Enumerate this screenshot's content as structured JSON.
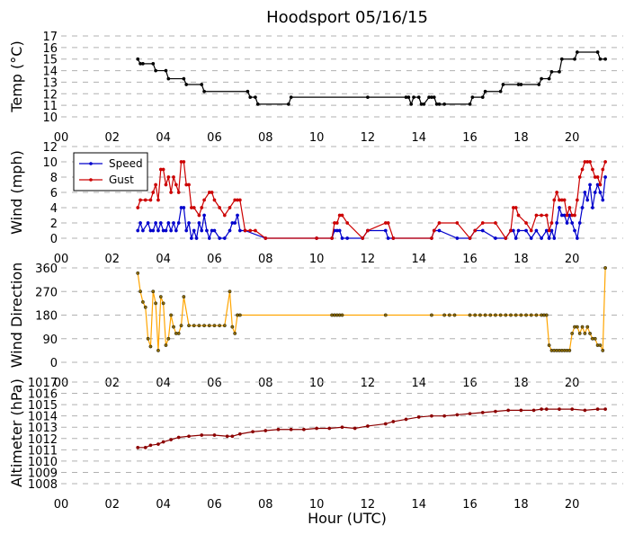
{
  "title": "Hoodsport 05/16/15",
  "xlabel": "Hour (UTC)",
  "xtick_labels": [
    "00",
    "02",
    "04",
    "06",
    "08",
    "10",
    "12",
    "14",
    "16",
    "18",
    "20"
  ],
  "colors": {
    "temp": "#000000",
    "speed": "#0000cc",
    "gust": "#cc0000",
    "direction": "#ffa500",
    "altimeter": "#8b0000"
  },
  "chart_data": [
    {
      "type": "line",
      "ylabel": "Temp (°C)",
      "ylim": [
        10,
        17
      ],
      "yticks": [
        10,
        11,
        12,
        13,
        14,
        15,
        16,
        17
      ],
      "xlim": [
        0,
        22
      ],
      "grid": true,
      "series": [
        {
          "key": "temp",
          "x": [
            3.0,
            3.1,
            3.2,
            3.6,
            3.7,
            4.1,
            4.2,
            4.8,
            4.9,
            5.5,
            5.6,
            7.3,
            7.4,
            7.6,
            7.7,
            8.9,
            9.0,
            12.0,
            13.5,
            13.6,
            13.7,
            13.8,
            14.0,
            14.1,
            14.2,
            14.4,
            14.5,
            14.6,
            14.7,
            14.8,
            15.0,
            16.0,
            16.1,
            16.5,
            16.6,
            17.2,
            17.3,
            17.9,
            18.0,
            18.7,
            18.8,
            19.1,
            19.2,
            19.5,
            19.6,
            20.1,
            20.2,
            21.0,
            21.1,
            21.3
          ],
          "y": [
            15,
            14.6,
            14.6,
            14.6,
            14,
            14,
            13.3,
            13.3,
            12.8,
            12.8,
            12.2,
            12.2,
            11.7,
            11.7,
            11.1,
            11.1,
            11.7,
            11.7,
            11.7,
            11.7,
            11.1,
            11.7,
            11.7,
            11.1,
            11.1,
            11.7,
            11.7,
            11.7,
            11.1,
            11.1,
            11.1,
            11.1,
            11.7,
            11.7,
            12.2,
            12.2,
            12.8,
            12.8,
            12.8,
            12.8,
            13.3,
            13.3,
            13.9,
            13.9,
            15,
            15,
            15.6,
            15.6,
            15,
            15
          ]
        }
      ]
    },
    {
      "type": "line",
      "ylabel": "Wind (mph)",
      "ylim": [
        0,
        12
      ],
      "yticks": [
        0,
        2,
        4,
        6,
        8,
        10,
        12
      ],
      "xlim": [
        0,
        22
      ],
      "grid": true,
      "legend": "upper-left",
      "series": [
        {
          "key": "speed",
          "name": "Speed",
          "x": [
            3.0,
            3.1,
            3.2,
            3.4,
            3.5,
            3.6,
            3.7,
            3.8,
            3.9,
            4.0,
            4.1,
            4.2,
            4.3,
            4.4,
            4.5,
            4.6,
            4.7,
            4.8,
            4.9,
            5.0,
            5.1,
            5.2,
            5.3,
            5.4,
            5.5,
            5.6,
            5.7,
            5.8,
            5.9,
            6.0,
            6.2,
            6.4,
            6.6,
            6.7,
            6.8,
            6.9,
            7.0,
            7.2,
            8.0,
            10.0,
            10.6,
            10.7,
            10.8,
            10.9,
            11.0,
            11.2,
            11.8,
            12.0,
            12.7,
            12.8,
            13.0,
            14.5,
            14.6,
            14.8,
            15.5,
            16.0,
            16.2,
            16.5,
            17.0,
            17.4,
            17.6,
            17.7,
            17.8,
            17.9,
            18.2,
            18.4,
            18.6,
            18.8,
            19.0,
            19.1,
            19.2,
            19.3,
            19.4,
            19.5,
            19.6,
            19.7,
            19.8,
            19.9,
            20.0,
            20.1,
            20.2,
            20.3,
            20.4,
            20.5,
            20.6,
            20.7,
            20.8,
            20.9,
            21.0,
            21.1,
            21.2,
            21.3
          ],
          "y": [
            1,
            2,
            1,
            2,
            1,
            1,
            2,
            1,
            2,
            1,
            1,
            2,
            1,
            2,
            1,
            2,
            4,
            4,
            1,
            2,
            0,
            1,
            0,
            2,
            1,
            3,
            1,
            0,
            1,
            1,
            0,
            0,
            1,
            2,
            2,
            3,
            1,
            1,
            0,
            0,
            0,
            1,
            1,
            1,
            0,
            0,
            0,
            1,
            1,
            0,
            0,
            0,
            1,
            1,
            0,
            0,
            1,
            1,
            0,
            0,
            1,
            1,
            0,
            1,
            1,
            0,
            1,
            0,
            1,
            0,
            1,
            0,
            2,
            4,
            3,
            3,
            2,
            3,
            2,
            1,
            0,
            2,
            4,
            6,
            5,
            7,
            4,
            6,
            7,
            6,
            5,
            8
          ]
        },
        {
          "key": "gust",
          "name": "Gust",
          "x": [
            3.0,
            3.1,
            3.3,
            3.5,
            3.6,
            3.7,
            3.8,
            3.9,
            4.0,
            4.1,
            4.2,
            4.3,
            4.4,
            4.5,
            4.6,
            4.7,
            4.8,
            4.9,
            5.0,
            5.1,
            5.2,
            5.4,
            5.5,
            5.6,
            5.8,
            5.9,
            6.0,
            6.2,
            6.4,
            6.6,
            6.8,
            6.9,
            7.0,
            7.2,
            7.4,
            7.6,
            8.0,
            10.0,
            10.6,
            10.7,
            10.8,
            10.9,
            11.0,
            11.2,
            11.8,
            12.0,
            12.7,
            12.8,
            13.0,
            14.5,
            14.6,
            14.8,
            15.5,
            16.0,
            16.2,
            16.5,
            17.0,
            17.4,
            17.6,
            17.7,
            17.8,
            17.9,
            18.2,
            18.4,
            18.6,
            18.8,
            19.0,
            19.1,
            19.2,
            19.3,
            19.4,
            19.5,
            19.6,
            19.7,
            19.8,
            19.9,
            20.0,
            20.1,
            20.2,
            20.3,
            20.4,
            20.5,
            20.6,
            20.7,
            20.8,
            20.9,
            21.0,
            21.1,
            21.2,
            21.3
          ],
          "y": [
            4,
            5,
            5,
            5,
            6,
            7,
            5,
            9,
            9,
            7,
            8,
            6,
            8,
            7,
            6,
            10,
            10,
            7,
            7,
            4,
            4,
            3,
            4,
            5,
            6,
            6,
            5,
            4,
            3,
            4,
            5,
            5,
            5,
            1,
            1,
            1,
            0,
            0,
            0,
            2,
            2,
            3,
            3,
            2,
            0,
            1,
            2,
            2,
            0,
            0,
            1,
            2,
            2,
            0,
            1,
            2,
            2,
            0,
            1,
            4,
            4,
            3,
            2,
            1,
            3,
            3,
            3,
            1,
            2,
            5,
            6,
            5,
            5,
            5,
            3,
            4,
            3,
            3,
            5,
            8,
            9,
            10,
            10,
            10,
            9,
            8,
            8,
            7,
            9,
            10
          ]
        }
      ]
    },
    {
      "type": "scatter",
      "ylabel": "Wind Direction",
      "ylim": [
        0,
        360
      ],
      "yticks": [
        0,
        90,
        180,
        270,
        360
      ],
      "xlim": [
        0,
        22
      ],
      "grid": true,
      "series": [
        {
          "key": "direction",
          "x": [
            3.0,
            3.1,
            3.2,
            3.3,
            3.4,
            3.5,
            3.6,
            3.7,
            3.8,
            3.9,
            4.0,
            4.1,
            4.2,
            4.3,
            4.4,
            4.5,
            4.6,
            4.7,
            4.8,
            5.0,
            5.2,
            5.4,
            5.6,
            5.8,
            6.0,
            6.2,
            6.4,
            6.6,
            6.7,
            6.8,
            6.9,
            7.0,
            10.6,
            10.7,
            10.8,
            10.9,
            11.0,
            12.7,
            14.5,
            15.0,
            15.2,
            15.4,
            16.0,
            16.2,
            16.4,
            16.6,
            16.8,
            17.0,
            17.2,
            17.4,
            17.6,
            17.8,
            18.0,
            18.2,
            18.4,
            18.6,
            18.8,
            18.9,
            19.0,
            19.1,
            19.2,
            19.3,
            19.4,
            19.5,
            19.6,
            19.7,
            19.8,
            19.9,
            20.0,
            20.1,
            20.2,
            20.3,
            20.4,
            20.5,
            20.6,
            20.7,
            20.8,
            20.9,
            21.0,
            21.1,
            21.2,
            21.3
          ],
          "y": [
            340,
            270,
            230,
            210,
            90,
            60,
            270,
            225,
            45,
            250,
            225,
            65,
            90,
            180,
            135,
            110,
            110,
            140,
            250,
            140,
            140,
            140,
            140,
            140,
            140,
            140,
            140,
            270,
            135,
            110,
            180,
            180,
            180,
            180,
            180,
            180,
            180,
            180,
            180,
            180,
            180,
            180,
            180,
            180,
            180,
            180,
            180,
            180,
            180,
            180,
            180,
            180,
            180,
            180,
            180,
            180,
            180,
            180,
            180,
            65,
            45,
            45,
            45,
            45,
            45,
            45,
            45,
            45,
            110,
            135,
            135,
            110,
            135,
            110,
            135,
            110,
            90,
            90,
            65,
            65,
            45,
            360
          ]
        }
      ]
    },
    {
      "type": "line",
      "ylabel": "Altimeter (hPa)",
      "ylim": [
        1008,
        1017
      ],
      "yticks": [
        1008,
        1009,
        1010,
        1011,
        1012,
        1013,
        1014,
        1015,
        1016,
        1017
      ],
      "xlim": [
        0,
        22
      ],
      "grid": true,
      "series": [
        {
          "key": "altimeter",
          "x": [
            3.0,
            3.3,
            3.5,
            3.8,
            4.0,
            4.3,
            4.6,
            5.0,
            5.5,
            6.0,
            6.5,
            6.7,
            7.0,
            7.5,
            8.0,
            8.5,
            9.0,
            9.5,
            10.0,
            10.5,
            11.0,
            11.5,
            12.0,
            12.7,
            13.0,
            13.5,
            14.0,
            14.5,
            15.0,
            15.5,
            16.0,
            16.5,
            17.0,
            17.5,
            18.0,
            18.5,
            18.8,
            19.0,
            19.5,
            20.0,
            20.5,
            21.0,
            21.3
          ],
          "y": [
            1011.2,
            1011.2,
            1011.4,
            1011.5,
            1011.7,
            1011.9,
            1012.1,
            1012.2,
            1012.3,
            1012.3,
            1012.2,
            1012.2,
            1012.4,
            1012.6,
            1012.7,
            1012.8,
            1012.8,
            1012.8,
            1012.9,
            1012.9,
            1013.0,
            1012.9,
            1013.1,
            1013.3,
            1013.5,
            1013.7,
            1013.9,
            1014.0,
            1014.0,
            1014.1,
            1014.2,
            1014.3,
            1014.4,
            1014.5,
            1014.5,
            1014.5,
            1014.6,
            1014.6,
            1014.6,
            1014.6,
            1014.5,
            1014.6,
            1014.6
          ]
        }
      ]
    }
  ]
}
